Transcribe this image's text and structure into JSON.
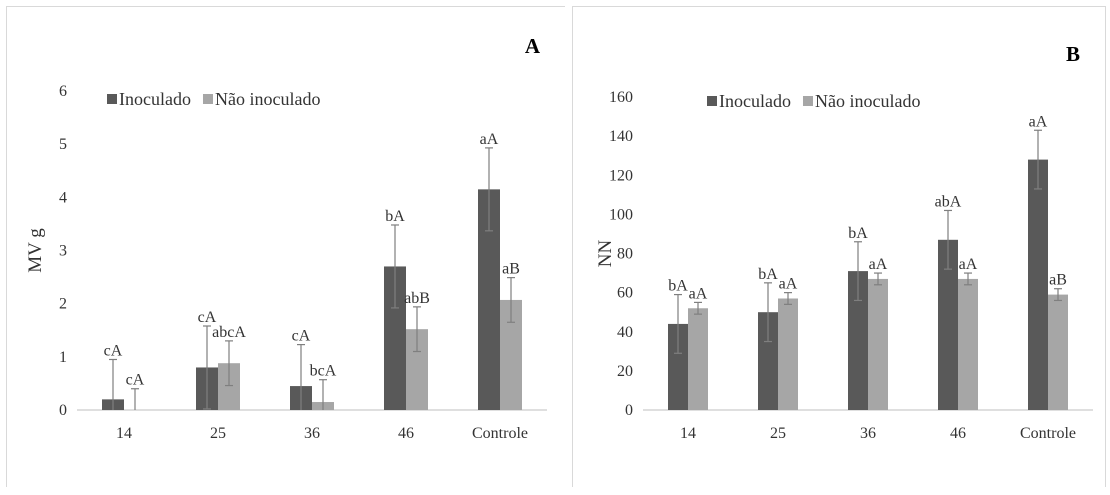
{
  "chart_data": [
    {
      "type": "bar",
      "panel_letter": "A",
      "ylabel": "MV g",
      "ylim": [
        0,
        6
      ],
      "yticks": [
        "0",
        "1",
        "2",
        "3",
        "4",
        "5",
        "6"
      ],
      "categories": [
        "14",
        "25",
        "36",
        "46",
        "Controle"
      ],
      "legend_position": "top-left",
      "series": [
        {
          "name": "Inoculado",
          "color": "#595959",
          "values": [
            0.2,
            0.8,
            0.45,
            2.7,
            4.15
          ],
          "errors": [
            0.75,
            0.78,
            0.78,
            0.78,
            0.78
          ],
          "labels": [
            "cA",
            "cA",
            "cA",
            "bA",
            "aA"
          ]
        },
        {
          "name": "Não inoculado",
          "color": "#a6a6a6",
          "values": [
            0.0,
            0.88,
            0.15,
            1.52,
            2.07
          ],
          "errors": [
            0.4,
            0.42,
            0.42,
            0.42,
            0.42
          ],
          "labels": [
            "cA",
            "abcA",
            "bcA",
            "abB",
            "aB"
          ]
        }
      ]
    },
    {
      "type": "bar",
      "panel_letter": "B",
      "ylabel": "NN",
      "ylim": [
        0,
        160
      ],
      "yticks": [
        "0",
        "20",
        "40",
        "60",
        "80",
        "100",
        "120",
        "140",
        "160"
      ],
      "categories": [
        "14",
        "25",
        "36",
        "46",
        "Controle"
      ],
      "legend_position": "top-left",
      "series": [
        {
          "name": "Inoculado",
          "color": "#595959",
          "values": [
            44,
            50,
            71,
            87,
            128
          ],
          "errors": [
            15,
            15,
            15,
            15,
            15
          ],
          "labels": [
            "bA",
            "bA",
            "bA",
            "abA",
            "aA"
          ]
        },
        {
          "name": "Não inoculado",
          "color": "#a6a6a6",
          "values": [
            52,
            57,
            67,
            67,
            59
          ],
          "errors": [
            3,
            3,
            3,
            3,
            3
          ],
          "labels": [
            "aA",
            "aA",
            "aA",
            "aA",
            "aB"
          ]
        }
      ]
    }
  ]
}
